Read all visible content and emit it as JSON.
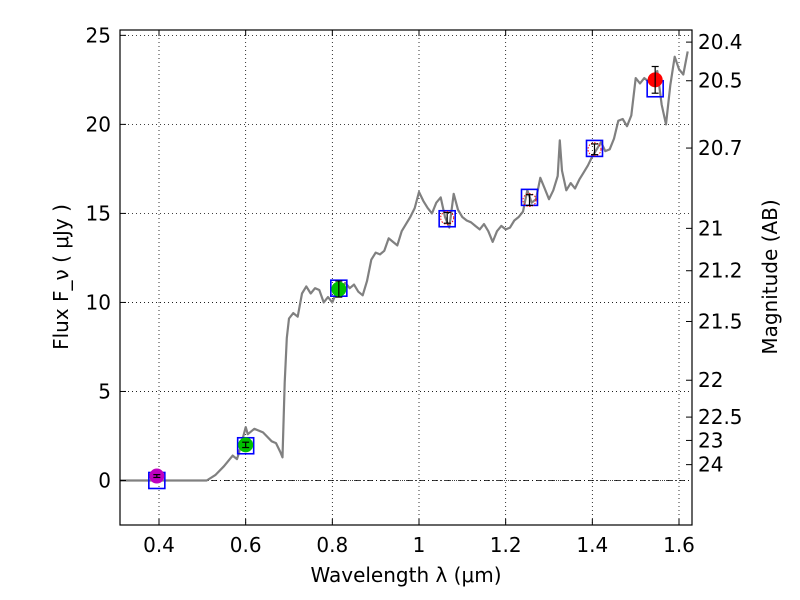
{
  "chart_data": {
    "type": "line",
    "title": "",
    "xlabel": "Wavelength  λ (μm)",
    "ylabel_left": "Flux  F_ν  ( μJy )",
    "ylabel_right": "Magnitude (AB)",
    "xlim": [
      0.31,
      1.63
    ],
    "ylim": [
      -2.5,
      25.3
    ],
    "grid": true,
    "x_ticks": [
      0.4,
      0.6,
      0.8,
      1.0,
      1.2,
      1.4,
      1.6
    ],
    "x_tick_labels": [
      "0.4",
      "0.6",
      "0.8",
      "1",
      "1.2",
      "1.4",
      "1.6"
    ],
    "y_ticks": [
      0,
      5,
      10,
      15,
      20,
      25
    ],
    "y_tick_labels": [
      "0",
      "5",
      "10",
      "15",
      "20",
      "25"
    ],
    "right_ticks": [
      {
        "label": "20.4",
        "flux": 24.62
      },
      {
        "label": "20.5",
        "flux": 22.45
      },
      {
        "label": "20.7",
        "flux": 18.67
      },
      {
        "label": "21",
        "flux": 14.16
      },
      {
        "label": "21.2",
        "flux": 11.78
      },
      {
        "label": "21.5",
        "flux": 8.93
      },
      {
        "label": "22",
        "flux": 5.63
      },
      {
        "label": "22.5",
        "flux": 3.56
      },
      {
        "label": "23",
        "flux": 2.25
      },
      {
        "label": "24",
        "flux": 0.89
      }
    ],
    "zero_line": 0,
    "sed_model": {
      "name": "SED model",
      "color": "#808080",
      "x": [
        0.31,
        0.51,
        0.53,
        0.55,
        0.56,
        0.57,
        0.58,
        0.585,
        0.6,
        0.605,
        0.62,
        0.64,
        0.66,
        0.67,
        0.68,
        0.685,
        0.69,
        0.695,
        0.7,
        0.71,
        0.72,
        0.73,
        0.74,
        0.75,
        0.76,
        0.77,
        0.78,
        0.79,
        0.8,
        0.81,
        0.82,
        0.83,
        0.84,
        0.85,
        0.86,
        0.87,
        0.88,
        0.89,
        0.9,
        0.91,
        0.92,
        0.93,
        0.94,
        0.95,
        0.96,
        0.97,
        0.98,
        0.99,
        1.0,
        1.01,
        1.02,
        1.03,
        1.04,
        1.05,
        1.06,
        1.07,
        1.08,
        1.09,
        1.1,
        1.11,
        1.12,
        1.13,
        1.14,
        1.15,
        1.16,
        1.17,
        1.18,
        1.19,
        1.2,
        1.21,
        1.22,
        1.23,
        1.24,
        1.25,
        1.26,
        1.27,
        1.28,
        1.29,
        1.3,
        1.31,
        1.32,
        1.325,
        1.33,
        1.34,
        1.35,
        1.36,
        1.37,
        1.38,
        1.39,
        1.4,
        1.41,
        1.42,
        1.43,
        1.44,
        1.45,
        1.46,
        1.47,
        1.48,
        1.49,
        1.5,
        1.51,
        1.52,
        1.53,
        1.54,
        1.55,
        1.56,
        1.57,
        1.58,
        1.59,
        1.6,
        1.61,
        1.62
      ],
      "y": [
        0.0,
        0.0,
        0.3,
        0.8,
        1.1,
        1.4,
        1.2,
        1.6,
        3.0,
        2.6,
        2.9,
        2.7,
        2.2,
        2.1,
        1.6,
        1.3,
        5.5,
        8.0,
        9.1,
        9.4,
        9.2,
        10.5,
        10.9,
        10.5,
        10.8,
        10.7,
        10.0,
        10.3,
        10.0,
        10.6,
        10.8,
        11.1,
        10.8,
        11.0,
        10.6,
        10.4,
        11.2,
        12.4,
        12.8,
        12.7,
        12.9,
        13.6,
        13.4,
        13.2,
        14.0,
        14.4,
        14.8,
        15.3,
        16.2,
        15.7,
        15.3,
        15.0,
        15.6,
        15.9,
        14.8,
        14.2,
        16.1,
        15.2,
        14.8,
        14.6,
        14.5,
        14.3,
        14.1,
        14.4,
        14.0,
        13.4,
        14.0,
        14.3,
        14.1,
        14.2,
        14.6,
        14.8,
        15.1,
        16.3,
        15.6,
        15.8,
        17.0,
        16.4,
        15.8,
        16.3,
        17.1,
        19.1,
        17.4,
        16.3,
        16.7,
        16.4,
        16.9,
        17.3,
        17.7,
        18.2,
        18.6,
        19.0,
        18.5,
        18.6,
        19.2,
        20.2,
        20.3,
        19.9,
        20.5,
        22.6,
        22.3,
        22.6,
        22.4,
        22.7,
        23.0,
        21.1,
        20.0,
        22.2,
        23.8,
        23.1,
        22.8,
        24.1
      ]
    },
    "markers": [
      {
        "name": "model-box-u",
        "x": 0.395,
        "y": 0.0,
        "shape": "square",
        "color": "#0000ff"
      },
      {
        "name": "model-box-r",
        "x": 0.6,
        "y": 1.95,
        "shape": "square",
        "color": "#0000ff"
      },
      {
        "name": "model-box-i",
        "x": 0.815,
        "y": 10.8,
        "shape": "square",
        "color": "#0000ff"
      },
      {
        "name": "model-box-y",
        "x": 1.065,
        "y": 14.7,
        "shape": "square",
        "color": "#0000ff"
      },
      {
        "name": "model-box-j",
        "x": 1.255,
        "y": 15.9,
        "shape": "square",
        "color": "#0000ff"
      },
      {
        "name": "model-box-jh",
        "x": 1.405,
        "y": 18.65,
        "shape": "square",
        "color": "#0000ff"
      },
      {
        "name": "model-box-h",
        "x": 1.545,
        "y": 22.0,
        "shape": "square",
        "color": "#0000ff"
      }
    ],
    "photometry": [
      {
        "name": "obs-u",
        "x": 0.395,
        "y": 0.25,
        "err": 0.08,
        "color": "#bf00bf",
        "style": "filled"
      },
      {
        "name": "obs-r",
        "x": 0.6,
        "y": 2.0,
        "err": 0.15,
        "color": "#00c000",
        "style": "filled"
      },
      {
        "name": "obs-i",
        "x": 0.815,
        "y": 10.75,
        "err": 0.45,
        "color": "#00c000",
        "style": "filled"
      },
      {
        "name": "obs-y",
        "x": 1.065,
        "y": 14.75,
        "err": 0.3,
        "color": "#ff0000",
        "style": "open"
      },
      {
        "name": "obs-j",
        "x": 1.255,
        "y": 15.75,
        "err": 0.3,
        "color": "#ff0000",
        "style": "open"
      },
      {
        "name": "obs-jh",
        "x": 1.405,
        "y": 18.6,
        "err": 0.3,
        "color": "#ff0000",
        "style": "open"
      },
      {
        "name": "obs-h",
        "x": 1.545,
        "y": 22.5,
        "err": 0.75,
        "color": "#ff0000",
        "style": "filled"
      }
    ]
  }
}
